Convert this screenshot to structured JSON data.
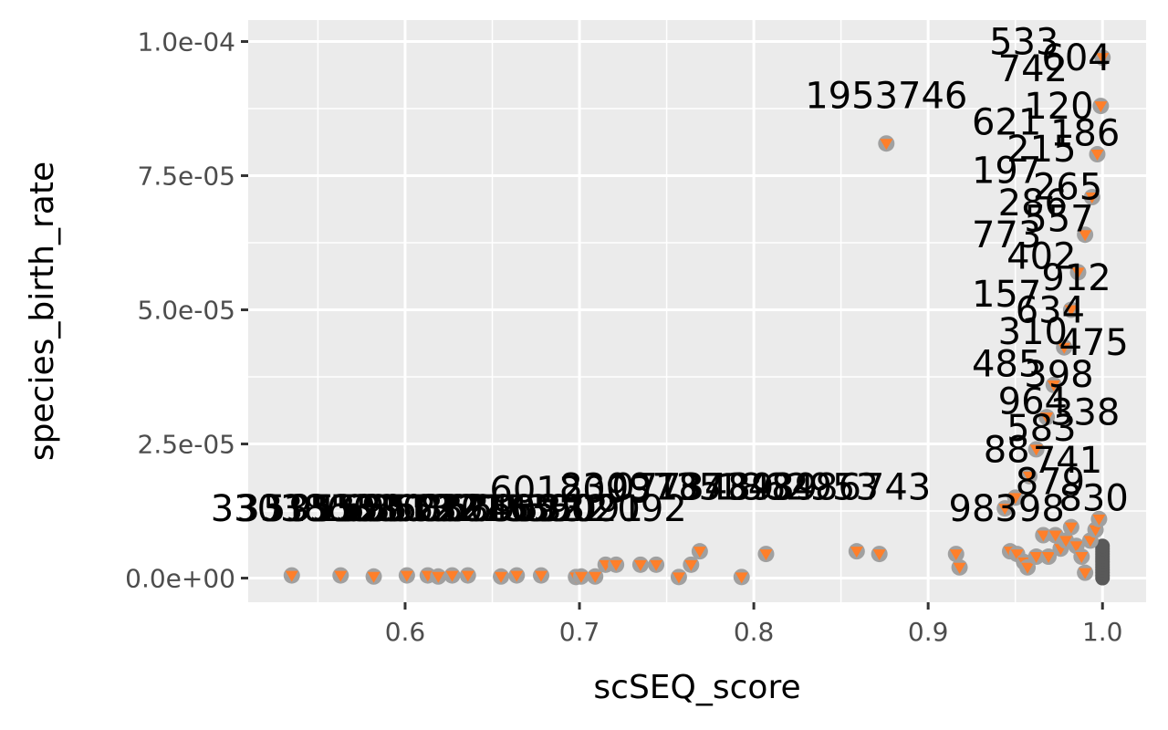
{
  "chart_data": {
    "type": "scatter",
    "title": "",
    "xlabel": "scSEQ_score",
    "ylabel": "species_birth_rate",
    "xlim": [
      0.51,
      1.025
    ],
    "ylim": [
      -4.5e-06,
      0.000104
    ],
    "x_ticks": [
      0.6,
      0.7,
      0.8,
      0.9,
      1.0
    ],
    "x_tick_labels": [
      "0.6",
      "0.7",
      "0.8",
      "0.9",
      "1.0"
    ],
    "y_ticks": [
      0,
      2.5e-05,
      5e-05,
      7.5e-05,
      0.0001
    ],
    "y_tick_labels": [
      "0.0e+00",
      "2.5e-05",
      "5.0e-05",
      "7.5e-05",
      "1.0e-04"
    ],
    "grid": true,
    "legend": "none",
    "colors": {
      "panel_background": "#ebebeb",
      "grid": "#ffffff",
      "point_outline": "#a0a0a0",
      "point_fill": "#ff7f2a",
      "dense_column_points": "#595959",
      "label_text": "#000000"
    },
    "points": [
      {
        "x": 0.535,
        "y": 5e-07
      },
      {
        "x": 0.563,
        "y": 5e-07
      },
      {
        "x": 0.582,
        "y": 3e-07
      },
      {
        "x": 0.601,
        "y": 5e-07
      },
      {
        "x": 0.613,
        "y": 5e-07
      },
      {
        "x": 0.619,
        "y": 3e-07
      },
      {
        "x": 0.627,
        "y": 5e-07
      },
      {
        "x": 0.636,
        "y": 5e-07
      },
      {
        "x": 0.655,
        "y": 3e-07
      },
      {
        "x": 0.664,
        "y": 5e-07
      },
      {
        "x": 0.678,
        "y": 5e-07
      },
      {
        "x": 0.698,
        "y": 2e-07
      },
      {
        "x": 0.701,
        "y": 3e-07
      },
      {
        "x": 0.709,
        "y": 3e-07
      },
      {
        "x": 0.715,
        "y": 2.5e-06
      },
      {
        "x": 0.721,
        "y": 2.5e-06
      },
      {
        "x": 0.735,
        "y": 2.5e-06
      },
      {
        "x": 0.744,
        "y": 2.5e-06
      },
      {
        "x": 0.757,
        "y": 2e-07
      },
      {
        "x": 0.764,
        "y": 2.5e-06
      },
      {
        "x": 0.769,
        "y": 5e-06
      },
      {
        "x": 0.793,
        "y": 2e-07
      },
      {
        "x": 0.807,
        "y": 4.5e-06
      },
      {
        "x": 0.859,
        "y": 5e-06
      },
      {
        "x": 0.872,
        "y": 4.5e-06
      },
      {
        "x": 0.876,
        "y": 8.1e-05
      },
      {
        "x": 0.916,
        "y": 4.5e-06
      },
      {
        "x": 0.918,
        "y": 2e-06
      },
      {
        "x": 0.947,
        "y": 5e-06
      },
      {
        "x": 0.951,
        "y": 4.5e-06
      },
      {
        "x": 0.955,
        "y": 3e-06
      },
      {
        "x": 0.957,
        "y": 2e-06
      },
      {
        "x": 0.962,
        "y": 4e-06
      },
      {
        "x": 0.966,
        "y": 8e-06
      },
      {
        "x": 0.969,
        "y": 4e-06
      },
      {
        "x": 0.973,
        "y": 8e-06
      },
      {
        "x": 0.976,
        "y": 5.5e-06
      },
      {
        "x": 0.979,
        "y": 7e-06
      },
      {
        "x": 0.982,
        "y": 9.5e-06
      },
      {
        "x": 0.985,
        "y": 6e-06
      },
      {
        "x": 0.988,
        "y": 4e-06
      },
      {
        "x": 0.99,
        "y": 1e-06
      },
      {
        "x": 0.993,
        "y": 7e-06
      },
      {
        "x": 0.996,
        "y": 9e-06
      },
      {
        "x": 0.998,
        "y": 1.1e-05
      },
      {
        "x": 0.944,
        "y": 1.3e-05
      },
      {
        "x": 0.95,
        "y": 1.5e-05
      },
      {
        "x": 0.958,
        "y": 1.9e-05
      },
      {
        "x": 0.962,
        "y": 2.4e-05
      },
      {
        "x": 0.968,
        "y": 3e-05
      },
      {
        "x": 0.972,
        "y": 3.6e-05
      },
      {
        "x": 0.978,
        "y": 4.3e-05
      },
      {
        "x": 0.982,
        "y": 5e-05
      },
      {
        "x": 0.986,
        "y": 5.7e-05
      },
      {
        "x": 0.99,
        "y": 6.4e-05
      },
      {
        "x": 0.994,
        "y": 7.1e-05
      },
      {
        "x": 0.997,
        "y": 7.9e-05
      },
      {
        "x": 0.999,
        "y": 8.8e-05
      },
      {
        "x": 1.0,
        "y": 9.7e-05
      }
    ],
    "dense_column": {
      "x": 1.0,
      "y_min": 0.0,
      "y_max": 6e-06
    },
    "labels": [
      {
        "text": "3303863",
        "x": 0.535,
        "y": 1.3e-05
      },
      {
        "text": "3313503",
        "x": 0.55,
        "y": 1.3e-05
      },
      {
        "text": "5353510",
        "x": 0.565,
        "y": 1.3e-05
      },
      {
        "text": "9552913",
        "x": 0.58,
        "y": 1.3e-05
      },
      {
        "text": "1595122",
        "x": 0.595,
        "y": 1.3e-05
      },
      {
        "text": "6515321",
        "x": 0.61,
        "y": 1.3e-05
      },
      {
        "text": "3522015",
        "x": 0.625,
        "y": 1.3e-05
      },
      {
        "text": "6032465",
        "x": 0.64,
        "y": 1.3e-05
      },
      {
        "text": "8635092",
        "x": 0.655,
        "y": 1.3e-05
      },
      {
        "text": "6695332",
        "x": 0.67,
        "y": 1.3e-05
      },
      {
        "text": "7535091",
        "x": 0.69,
        "y": 1.3e-05
      },
      {
        "text": "5902092",
        "x": 0.715,
        "y": 1.3e-05
      },
      {
        "text": "6012093",
        "x": 0.695,
        "y": 1.65e-05
      },
      {
        "text": "8309735",
        "x": 0.735,
        "y": 1.7e-05
      },
      {
        "text": "0773489",
        "x": 0.765,
        "y": 1.7e-05
      },
      {
        "text": "1873489",
        "x": 0.79,
        "y": 1.7e-05
      },
      {
        "text": "1862953",
        "x": 0.825,
        "y": 1.7e-05
      },
      {
        "text": "3486743",
        "x": 0.855,
        "y": 1.7e-05
      },
      {
        "text": "1953746",
        "x": 0.876,
        "y": 9e-05
      },
      {
        "text": "98398",
        "x": 0.945,
        "y": 1.3e-05
      },
      {
        "text": "773",
        "x": 0.945,
        "y": 6.4e-05
      },
      {
        "text": "157",
        "x": 0.945,
        "y": 5.3e-05
      },
      {
        "text": "485",
        "x": 0.945,
        "y": 4e-05
      },
      {
        "text": "88",
        "x": 0.945,
        "y": 2.4e-05
      },
      {
        "text": "197",
        "x": 0.945,
        "y": 7.6e-05
      },
      {
        "text": "621",
        "x": 0.945,
        "y": 8.5e-05
      },
      {
        "text": "533",
        "x": 0.955,
        "y": 0.0001
      },
      {
        "text": "742",
        "x": 0.96,
        "y": 9.5e-05
      },
      {
        "text": "286",
        "x": 0.96,
        "y": 7e-05
      },
      {
        "text": "310",
        "x": 0.96,
        "y": 4.6e-05
      },
      {
        "text": "964",
        "x": 0.96,
        "y": 3.3e-05
      },
      {
        "text": "583",
        "x": 0.965,
        "y": 2.8e-05
      },
      {
        "text": "402",
        "x": 0.965,
        "y": 6e-05
      },
      {
        "text": "215",
        "x": 0.965,
        "y": 8e-05
      },
      {
        "text": "879",
        "x": 0.97,
        "y": 1.8e-05
      },
      {
        "text": "634",
        "x": 0.97,
        "y": 5e-05
      },
      {
        "text": "120",
        "x": 0.975,
        "y": 8.8e-05
      },
      {
        "text": "557",
        "x": 0.975,
        "y": 6.7e-05
      },
      {
        "text": "398",
        "x": 0.975,
        "y": 3.8e-05
      },
      {
        "text": "741",
        "x": 0.98,
        "y": 2.2e-05
      },
      {
        "text": "265",
        "x": 0.98,
        "y": 7.3e-05
      },
      {
        "text": "912",
        "x": 0.985,
        "y": 5.6e-05
      },
      {
        "text": "604",
        "x": 0.985,
        "y": 9.7e-05
      },
      {
        "text": "338",
        "x": 0.99,
        "y": 3.1e-05
      },
      {
        "text": "186",
        "x": 0.99,
        "y": 8.3e-05
      },
      {
        "text": "475",
        "x": 0.995,
        "y": 4.4e-05
      },
      {
        "text": "830",
        "x": 0.995,
        "y": 1.5e-05
      }
    ]
  }
}
